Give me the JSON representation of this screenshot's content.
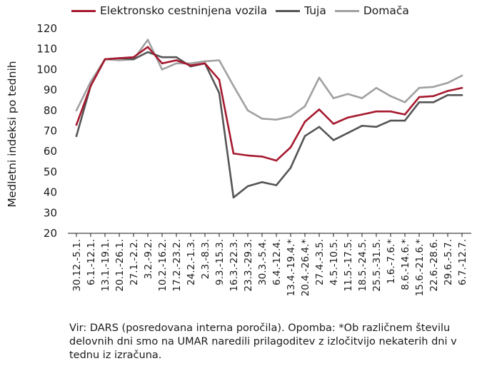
{
  "chart_data": {
    "type": "line",
    "ylabel": "Medletni indeksi po tednih",
    "xlabel": "",
    "ylim": [
      20,
      120
    ],
    "yticks": [
      20,
      30,
      40,
      50,
      60,
      70,
      80,
      90,
      100,
      110,
      120
    ],
    "grid": false,
    "legend_position": "top",
    "categories": [
      "30.12.-5.1.",
      "6.1.-12.1.",
      "13.1.-19.1.",
      "20.1.-26.1.",
      "27.1.-2.2.",
      "3.2.-9.2.",
      "10.2.-16.2.",
      "17.2.-23.2.",
      "24.2.-1.3.",
      "2.3.-8.3.",
      "9.3.-15.3.",
      "16.3.-22.3.",
      "23.3.-29.3.",
      "30.3.-5.4.",
      "6.4.-12.4.",
      "13.4.-19.4.*",
      "20.4.-26.4.*",
      "27.4.-3.5.",
      "4.5.-10.5.",
      "11.5.-17.5.",
      "18.5.-24.5.",
      "25.5.-31.5.",
      "1.6.-7.6.*",
      "8.6.-14.6.*",
      "15.6.-21.6.*",
      "22.6.-28.6.",
      "29.6.-5.7.",
      "6.7.-12.7."
    ],
    "series": [
      {
        "name": "Elektronsko cestninjena vozila",
        "color": "#a6192e",
        "values": [
          73,
          92,
          105,
          105.5,
          106,
          111,
          103,
          104.5,
          102,
          103,
          95,
          59,
          58,
          57.5,
          55.5,
          62,
          74.5,
          80.5,
          73.5,
          76.5,
          78,
          79.5,
          79.5,
          78,
          86.5,
          87,
          89.5,
          91
        ]
      },
      {
        "name": "Tuja",
        "color": "#555555",
        "values": [
          67.5,
          92,
          105,
          105.5,
          105,
          108.5,
          106,
          106,
          101.5,
          103,
          88.5,
          37.5,
          43,
          45,
          43.5,
          52,
          67.5,
          72,
          65.5,
          69,
          72.5,
          72,
          75,
          75,
          84,
          84,
          87.5,
          87.5
        ]
      },
      {
        "name": "Domača",
        "color": "#a0a0a0",
        "values": [
          80,
          94,
          105,
          104.5,
          105,
          114.5,
          100,
          103,
          103,
          104,
          104.5,
          92,
          80,
          76,
          75.5,
          77,
          82,
          96,
          86,
          88,
          86,
          91,
          87,
          84,
          91,
          91.5,
          93.5,
          97
        ]
      }
    ]
  },
  "footnote": "Vir: DARS (posredovana interna poročila). Opomba: *Ob različnem številu delovnih dni smo na UMAR naredili prilagoditev z izločitvijo nekaterih dni v tednu iz izračuna."
}
